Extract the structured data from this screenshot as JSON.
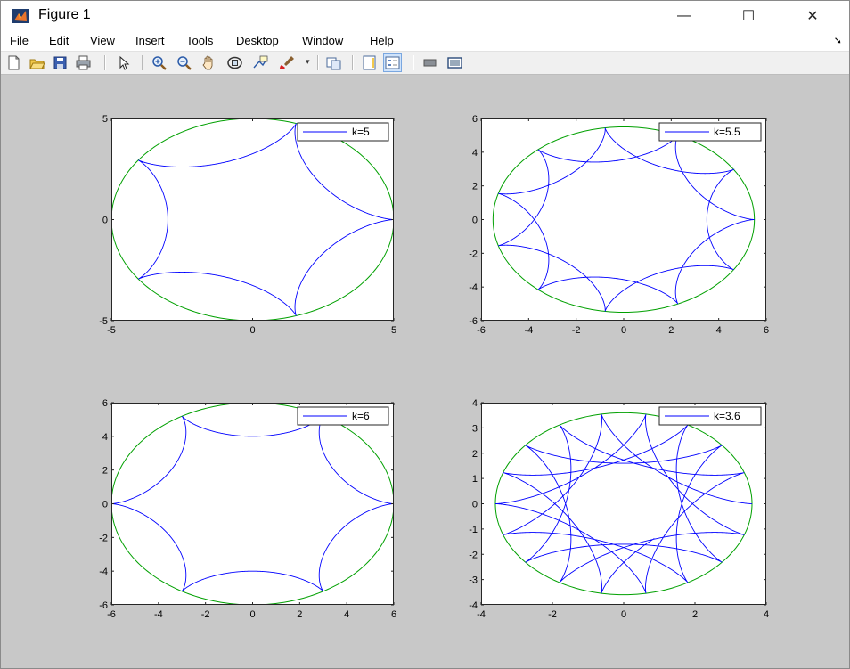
{
  "window": {
    "title": "Figure 1",
    "controls": {
      "minimize": "—",
      "maximize": "☐",
      "close": "✕"
    }
  },
  "menu": {
    "items": [
      "File",
      "Edit",
      "View",
      "Insert",
      "Tools",
      "Desktop",
      "Window",
      "Help"
    ]
  },
  "toolbar": {
    "icons": [
      "new-figure-icon",
      "open-file-icon",
      "save-icon",
      "print-icon",
      "pointer-icon",
      "zoom-in-icon",
      "zoom-out-icon",
      "pan-icon",
      "rotate-3d-icon",
      "data-cursor-icon",
      "brush-icon",
      "link-plot-icon",
      "colorbar-icon",
      "legend-icon",
      "hide-plot-tools-icon",
      "show-plot-tools-icon"
    ]
  },
  "colors": {
    "curve": "#0000ff",
    "circle": "#00a000",
    "axes_bg": "#ffffff",
    "figure_bg": "#c8c8c8"
  },
  "chart_data": [
    {
      "type": "line",
      "description_k": 5,
      "legend": [
        "k=5"
      ],
      "legend_position": "top-right",
      "R": 5,
      "r": 1,
      "t_range": [
        0,
        6.2832
      ],
      "xlim": [
        -5,
        5
      ],
      "ylim": [
        -5,
        5
      ],
      "xticks": [
        -5,
        0,
        5
      ],
      "yticks": [
        -5,
        0,
        5
      ],
      "xtick_labels": [
        "-5",
        "0",
        "5"
      ],
      "ytick_labels": [
        "-5",
        "0",
        "5"
      ]
    },
    {
      "type": "line",
      "description_k": 5.5,
      "legend": [
        "k=5.5"
      ],
      "legend_position": "top-right",
      "R": 5.5,
      "r": 1,
      "t_range": [
        0,
        12.5664
      ],
      "xlim": [
        -6,
        6
      ],
      "ylim": [
        -6,
        6
      ],
      "xticks": [
        -6,
        -4,
        -2,
        0,
        2,
        4,
        6
      ],
      "yticks": [
        -6,
        -4,
        -2,
        0,
        2,
        4,
        6
      ],
      "xtick_labels": [
        "-6",
        "-4",
        "-2",
        "0",
        "2",
        "4",
        "6"
      ],
      "ytick_labels": [
        "-6",
        "-4",
        "-2",
        "0",
        "2",
        "4",
        "6"
      ]
    },
    {
      "type": "line",
      "description_k": 6,
      "legend": [
        "k=6"
      ],
      "legend_position": "top-right",
      "R": 6,
      "r": 1,
      "t_range": [
        0,
        6.2832
      ],
      "xlim": [
        -6,
        6
      ],
      "ylim": [
        -6,
        6
      ],
      "xticks": [
        -6,
        -4,
        -2,
        0,
        2,
        4,
        6
      ],
      "yticks": [
        -6,
        -4,
        -2,
        0,
        2,
        4,
        6
      ],
      "xtick_labels": [
        "-6",
        "-4",
        "-2",
        "0",
        "2",
        "4",
        "6"
      ],
      "ytick_labels": [
        "-6",
        "-4",
        "-2",
        "0",
        "2",
        "4",
        "6"
      ]
    },
    {
      "type": "line",
      "description_k": 3.6,
      "legend": [
        "k=3.6"
      ],
      "legend_position": "top-right",
      "R": 3.6,
      "r": 1,
      "t_range": [
        0,
        30.5
      ],
      "xlim": [
        -4,
        4
      ],
      "ylim": [
        -4,
        4
      ],
      "xticks": [
        -4,
        -2,
        0,
        2,
        4
      ],
      "yticks": [
        -4,
        -3,
        -2,
        -1,
        0,
        1,
        2,
        3,
        4
      ],
      "xtick_labels": [
        "-4",
        "-2",
        "0",
        "2",
        "4"
      ],
      "ytick_labels": [
        "-4",
        "-3",
        "-2",
        "-1",
        "0",
        "1",
        "2",
        "3",
        "4"
      ]
    }
  ]
}
